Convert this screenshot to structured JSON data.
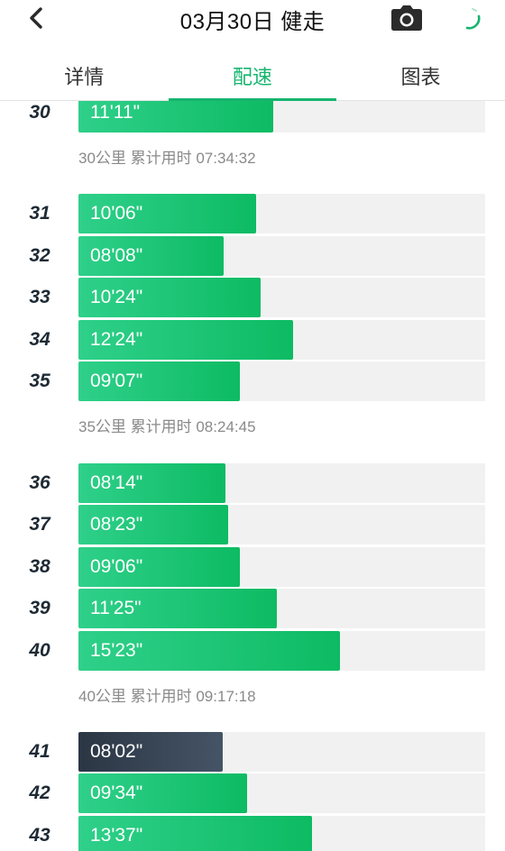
{
  "header": {
    "title": "03月30日 健走",
    "back_icon": "chevron-left-icon",
    "camera_icon": "camera-icon",
    "loading_icon": "spinner-icon",
    "accent": "#16b56f"
  },
  "tabs": [
    {
      "label": "详情",
      "active": false
    },
    {
      "label": "配速",
      "active": true
    },
    {
      "label": "图表",
      "active": false
    }
  ],
  "splits": [
    {
      "km": "30",
      "pace": "11'11\"",
      "fraction": 0.479
    },
    {
      "km": "31",
      "pace": "10'06\"",
      "fraction": 0.436
    },
    {
      "km": "32",
      "pace": "08'08\"",
      "fraction": 0.358
    },
    {
      "km": "33",
      "pace": "10'24\"",
      "fraction": 0.448
    },
    {
      "km": "34",
      "pace": "12'24\"",
      "fraction": 0.527
    },
    {
      "km": "35",
      "pace": "09'07\"",
      "fraction": 0.398
    },
    {
      "km": "36",
      "pace": "08'14\"",
      "fraction": 0.362
    },
    {
      "km": "37",
      "pace": "08'23\"",
      "fraction": 0.369
    },
    {
      "km": "38",
      "pace": "09'06\"",
      "fraction": 0.396
    },
    {
      "km": "39",
      "pace": "11'25\"",
      "fraction": 0.488
    },
    {
      "km": "40",
      "pace": "15'23\"",
      "fraction": 0.644
    },
    {
      "km": "41",
      "pace": "08'02\"",
      "fraction": 0.355,
      "highlight": true
    },
    {
      "km": "42",
      "pace": "09'34\"",
      "fraction": 0.415
    },
    {
      "km": "43",
      "pace": "13'37\"",
      "fraction": 0.575
    }
  ],
  "summaries": [
    {
      "text": "30公里 累计用时 07:34:32"
    },
    {
      "text": "35公里 累计用时 08:24:45"
    },
    {
      "text": "40公里 累计用时 09:17:18"
    }
  ]
}
